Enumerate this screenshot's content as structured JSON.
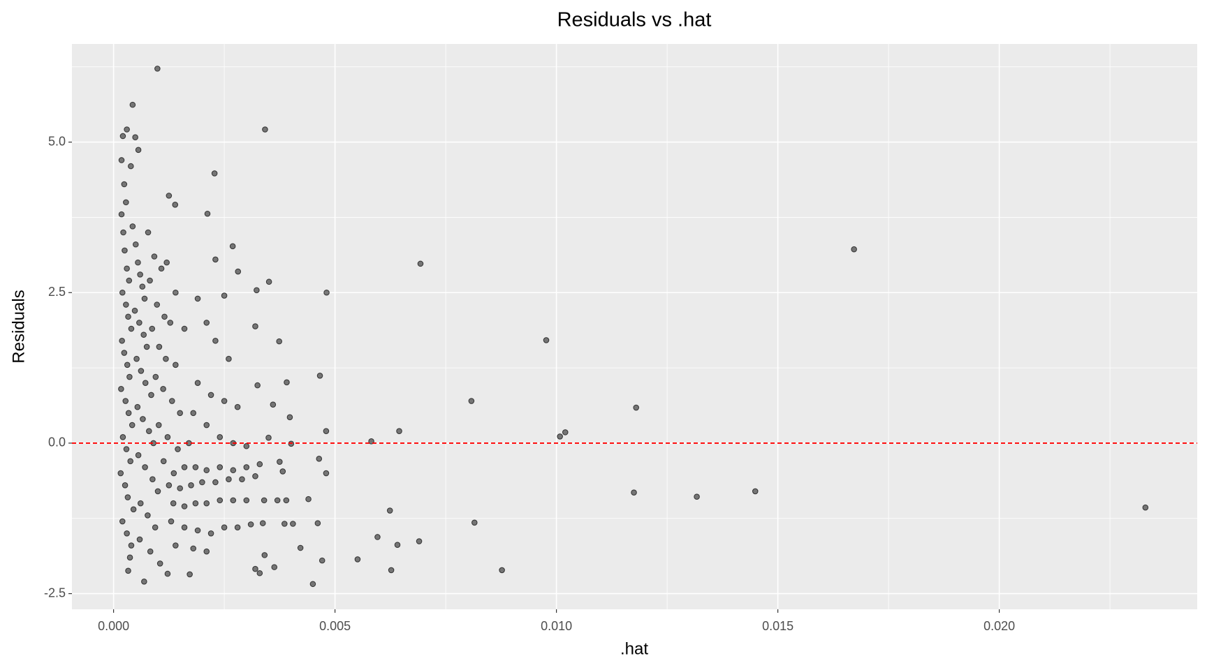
{
  "chart_data": {
    "type": "scatter",
    "title": "Residuals vs .hat",
    "xlabel": ".hat",
    "ylabel": "Residuals",
    "color": "#000000",
    "opacity": 0.5,
    "grid": true,
    "xlim": [
      -0.00094,
      0.02447
    ],
    "ylim": [
      -2.76,
      6.63
    ],
    "xticks": [
      {
        "value": 0,
        "label": "0.000"
      },
      {
        "value": 0.005,
        "label": "0.005"
      },
      {
        "value": 0.01,
        "label": "0.010"
      },
      {
        "value": 0.015,
        "label": "0.015"
      },
      {
        "value": 0.02,
        "label": "0.020"
      }
    ],
    "yticks": [
      -2.5,
      {
        "value": 0,
        "label": "0.0"
      },
      2.5,
      {
        "value": 5,
        "label": "5.0"
      }
    ],
    "minor_xticks": [
      0.0025,
      0.0075,
      0.0125,
      0.0175,
      0.0225
    ],
    "minor_yticks": [
      -1.25,
      1.25,
      3.75,
      6.25
    ],
    "hline": {
      "y": 0,
      "color": "#ff0000"
    },
    "x": [
      0.00099,
      0.00043,
      0.00342,
      0.0003,
      0.00021,
      0.00049,
      0.00056,
      0.00228,
      0.00125,
      0.00139,
      0.00212,
      0.00269,
      0.01672,
      0.00693,
      0.00351,
      0.00281,
      0.00481,
      0.00323,
      0.00977,
      0.00374,
      0.0032,
      0.00466,
      0.00391,
      0.00325,
      0.00808,
      0.0118,
      0.0036,
      0.00398,
      0.0048,
      0.00645,
      0.0102,
      0.01008,
      0.00582,
      0.00401,
      0.0048,
      0.00464,
      0.01175,
      0.01317,
      0.01449,
      0.0233,
      0.00624,
      0.00815,
      0.0044,
      0.00461,
      0.00596,
      0.00641,
      0.0069,
      0.00422,
      0.00471,
      0.00551,
      0.00627,
      0.00877,
      0.0045,
      0.00341,
      0.0032,
      0.0033,
      0.00363,
      0.00172,
      0.00122,
      0.00069,
      0.00033,
      0.00386,
      0.00405,
      0.00337,
      0.00382,
      0.00375,
      0.0035,
      0.00018,
      0.00022,
      0.00025,
      0.0003,
      0.00035,
      0.0002,
      0.00028,
      0.00033,
      0.0004,
      0.00019,
      0.00024,
      0.00031,
      0.00036,
      0.00017,
      0.00027,
      0.00034,
      0.00042,
      0.00021,
      0.00029,
      0.00038,
      0.00016,
      0.00026,
      0.00032,
      0.00045,
      0.0002,
      0.0003,
      0.0004,
      0.00037,
      0.00018,
      0.00024,
      0.00039,
      0.00028,
      0.00043,
      0.0005,
      0.00055,
      0.0006,
      0.00065,
      0.0007,
      0.00048,
      0.00058,
      0.00068,
      0.00075,
      0.00052,
      0.00062,
      0.00072,
      0.00085,
      0.00054,
      0.00066,
      0.0008,
      0.0009,
      0.00056,
      0.00071,
      0.00088,
      0.001,
      0.00061,
      0.00077,
      0.00094,
      0.00059,
      0.00083,
      0.00105,
      0.00078,
      0.00092,
      0.00108,
      0.0012,
      0.00082,
      0.00098,
      0.00115,
      0.00128,
      0.00087,
      0.00103,
      0.00118,
      0.0014,
      0.00095,
      0.00112,
      0.00132,
      0.0015,
      0.00102,
      0.00122,
      0.00145,
      0.0017,
      0.00113,
      0.00136,
      0.0016,
      0.00185,
      0.0021,
      0.0024,
      0.0027,
      0.003,
      0.0033,
      0.00125,
      0.0015,
      0.00175,
      0.002,
      0.0023,
      0.0026,
      0.0029,
      0.0032,
      0.00135,
      0.0016,
      0.00185,
      0.0021,
      0.0024,
      0.0027,
      0.003,
      0.0034,
      0.0037,
      0.0039,
      0.0013,
      0.0016,
      0.0019,
      0.0022,
      0.0025,
      0.0028,
      0.0031,
      0.0014,
      0.0018,
      0.0021,
      0.0019,
      0.0022,
      0.0025,
      0.0028,
      0.0018,
      0.0021,
      0.0024,
      0.0027,
      0.003,
      0.0023,
      0.0026,
      0.0021,
      0.0019,
      0.0025,
      0.0023,
      0.0016,
      0.0014
    ],
    "values": [
      6.22,
      5.62,
      5.21,
      5.21,
      5.1,
      5.08,
      4.87,
      4.48,
      4.11,
      3.96,
      3.81,
      3.27,
      3.22,
      2.98,
      2.68,
      2.85,
      2.5,
      2.54,
      1.71,
      1.69,
      1.94,
      1.12,
      1.01,
      0.96,
      0.7,
      0.59,
      0.64,
      0.43,
      0.2,
      0.2,
      0.18,
      0.11,
      0.03,
      -0.01,
      -0.5,
      -0.26,
      -0.82,
      -0.89,
      -0.8,
      -1.07,
      -1.12,
      -1.32,
      -0.93,
      -1.33,
      -1.56,
      -1.69,
      -1.63,
      -1.74,
      -1.95,
      -1.93,
      -2.11,
      -2.11,
      -2.34,
      -1.86,
      -2.09,
      -2.16,
      -2.06,
      -2.18,
      -2.17,
      -2.3,
      -2.12,
      -1.34,
      -1.34,
      -1.33,
      -0.47,
      -0.31,
      0.09,
      3.8,
      3.5,
      3.2,
      2.9,
      2.7,
      2.5,
      2.3,
      2.1,
      1.9,
      1.7,
      1.5,
      1.3,
      1.1,
      0.9,
      0.7,
      0.5,
      0.3,
      0.1,
      -0.1,
      -0.3,
      -0.5,
      -0.7,
      -0.9,
      -1.1,
      -1.3,
      -1.5,
      -1.7,
      -1.9,
      4.7,
      4.3,
      4.6,
      4.0,
      3.6,
      3.3,
      3.0,
      2.8,
      2.6,
      2.4,
      2.2,
      2.0,
      1.8,
      1.6,
      1.4,
      1.2,
      1.0,
      0.8,
      0.6,
      0.4,
      0.2,
      0.0,
      -0.2,
      -0.4,
      -0.6,
      -0.8,
      -1.0,
      -1.2,
      -1.4,
      -1.6,
      -1.8,
      -2.0,
      3.5,
      3.1,
      2.9,
      3.0,
      2.7,
      2.3,
      2.1,
      2.0,
      1.9,
      1.6,
      1.4,
      1.3,
      1.1,
      0.9,
      0.7,
      0.5,
      0.3,
      0.1,
      -0.1,
      0.0,
      -0.3,
      -0.5,
      -0.4,
      -0.4,
      -0.45,
      -0.4,
      -0.45,
      -0.4,
      -0.35,
      -0.7,
      -0.75,
      -0.7,
      -0.65,
      -0.65,
      -0.6,
      -0.6,
      -0.55,
      -1.0,
      -1.05,
      -1.0,
      -1.0,
      -0.95,
      -0.95,
      -0.95,
      -0.95,
      -0.95,
      -0.95,
      -1.3,
      -1.4,
      -1.45,
      -1.5,
      -1.4,
      -1.4,
      -1.35,
      -1.7,
      -1.75,
      -1.8,
      1.0,
      0.8,
      0.7,
      0.6,
      0.5,
      0.3,
      0.1,
      0.0,
      -0.05,
      1.7,
      1.4,
      2.0,
      2.4,
      2.45,
      3.05,
      1.9,
      2.5
    ]
  }
}
